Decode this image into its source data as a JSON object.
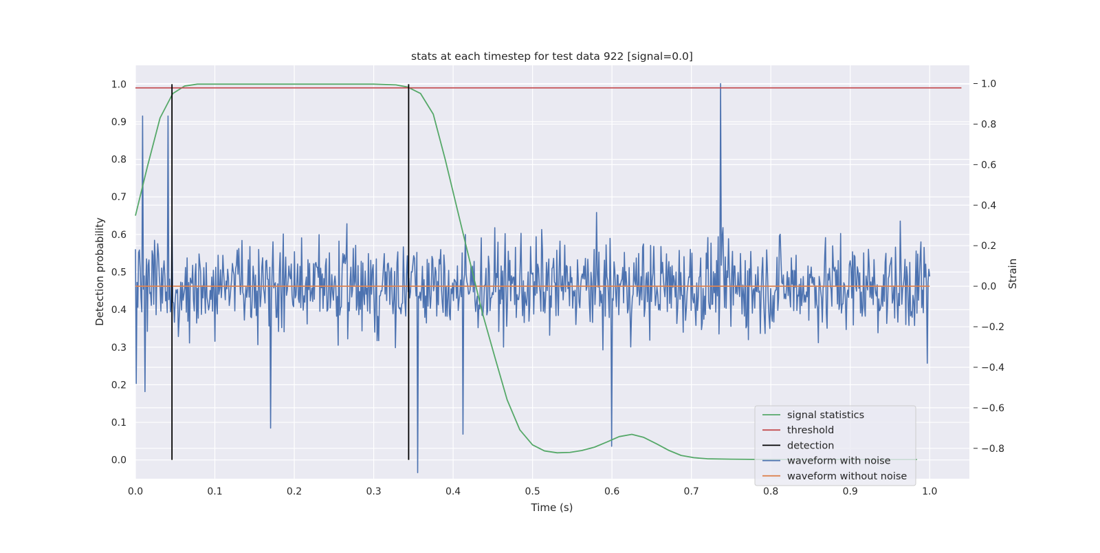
{
  "chart_data": {
    "type": "line",
    "title": "stats at each timestep for test data 922 [signal=0.0]",
    "xlabel": "Time (s)",
    "ylabel_left": "Detection probability",
    "ylabel_right": "Strain",
    "xlim": [
      0.0,
      1.05
    ],
    "ylim_left": [
      -0.05,
      1.05
    ],
    "ylim_right": [
      -0.95,
      1.09
    ],
    "x_ticks": [
      "0.0",
      "0.1",
      "0.2",
      "0.3",
      "0.4",
      "0.5",
      "0.6",
      "0.7",
      "0.8",
      "0.9",
      "1.0"
    ],
    "x_tick_values": [
      0.0,
      0.1,
      0.2,
      0.3,
      0.4,
      0.5,
      0.6,
      0.7,
      0.8,
      0.9,
      1.0
    ],
    "y_ticks_left": [
      "0.0",
      "0.1",
      "0.2",
      "0.3",
      "0.4",
      "0.5",
      "0.6",
      "0.7",
      "0.8",
      "0.9",
      "1.0"
    ],
    "y_tick_values_left": [
      0.0,
      0.1,
      0.2,
      0.3,
      0.4,
      0.5,
      0.6,
      0.7,
      0.8,
      0.9,
      1.0
    ],
    "y_ticks_right": [
      "−0.8",
      "−0.6",
      "−0.4",
      "−0.2",
      "0.0",
      "0.2",
      "0.4",
      "0.6",
      "0.8",
      "1.0"
    ],
    "y_tick_values_right": [
      -0.8,
      -0.6,
      -0.4,
      -0.2,
      0.0,
      0.2,
      0.4,
      0.6,
      0.8,
      1.0
    ],
    "grid": true,
    "legend_position": "lower-right",
    "series": [
      {
        "name": "signal statistics",
        "axis": "left",
        "color": "#55a868",
        "x": [
          0.0,
          0.015,
          0.031,
          0.047,
          0.062,
          0.078,
          0.1,
          0.15,
          0.2,
          0.25,
          0.3,
          0.328,
          0.343,
          0.359,
          0.375,
          0.39,
          0.406,
          0.422,
          0.437,
          0.453,
          0.468,
          0.484,
          0.5,
          0.515,
          0.531,
          0.547,
          0.562,
          0.578,
          0.594,
          0.609,
          0.625,
          0.64,
          0.656,
          0.672,
          0.687,
          0.703,
          0.72,
          0.75,
          0.8,
          0.85,
          0.9,
          0.95,
          0.984
        ],
        "y": [
          0.65,
          0.78,
          0.91,
          0.975,
          0.995,
          1.0,
          1.0,
          1.0,
          1.0,
          1.0,
          1.0,
          0.998,
          0.992,
          0.975,
          0.92,
          0.8,
          0.66,
          0.52,
          0.39,
          0.27,
          0.16,
          0.08,
          0.04,
          0.024,
          0.019,
          0.02,
          0.025,
          0.034,
          0.048,
          0.062,
          0.068,
          0.06,
          0.043,
          0.025,
          0.012,
          0.006,
          0.003,
          0.002,
          0.001,
          0.001,
          0.001,
          0.001,
          0.001
        ]
      },
      {
        "name": "threshold",
        "axis": "left",
        "color": "#c44e52",
        "x": [
          0.0,
          1.04
        ],
        "y": [
          0.99,
          0.99
        ]
      },
      {
        "name": "detection",
        "axis": "left",
        "color": "#000000",
        "x_positions": [
          0.046,
          0.344
        ],
        "y_range": [
          0.0,
          1.0
        ]
      },
      {
        "name": "waveform with noise",
        "axis": "right",
        "color": "#4c72b0",
        "x_range": [
          0.0,
          1.0
        ],
        "points": 1000,
        "highlights": [
          {
            "x": 0.001,
            "y": -0.48
          },
          {
            "x": 0.009,
            "y": 0.84
          },
          {
            "x": 0.012,
            "y": -0.52
          },
          {
            "x": 0.041,
            "y": 0.84
          },
          {
            "x": 0.17,
            "y": -0.7
          },
          {
            "x": 0.355,
            "y": -0.92
          },
          {
            "x": 0.412,
            "y": -0.73
          },
          {
            "x": 0.6,
            "y": -0.79
          },
          {
            "x": 0.737,
            "y": 1.0
          },
          {
            "x": 0.997,
            "y": -0.38
          }
        ]
      },
      {
        "name": "waveform without noise",
        "axis": "right",
        "color": "#dd8452",
        "x": [
          0.0,
          1.0
        ],
        "y": [
          0.0,
          0.0
        ]
      }
    ]
  }
}
